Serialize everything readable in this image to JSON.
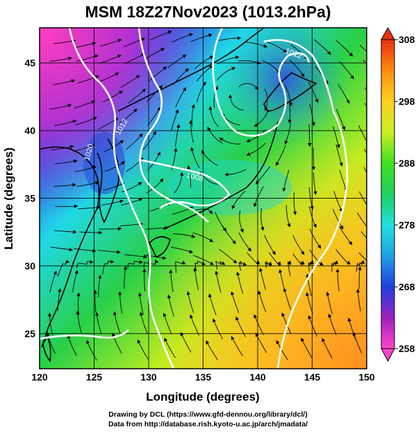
{
  "title": "MSM 18Z27Nov2023 (1013.2hPa)",
  "map": {
    "x_axis": {
      "label": "Longitude (degrees)",
      "ticks": [
        120,
        125,
        130,
        135,
        140,
        145,
        150
      ],
      "range": [
        120,
        150
      ]
    },
    "y_axis": {
      "label": "Latitude  (degrees)",
      "ticks": [
        25,
        30,
        35,
        40,
        45
      ],
      "range": [
        22.4,
        47.6
      ]
    },
    "field": "temperature",
    "overlays": [
      "white pressure contours",
      "black wind streamlines",
      "coastlines",
      "1-degree grid"
    ],
    "contour_labels": [
      "1020",
      "1012",
      "1008",
      "1012"
    ],
    "colors": {
      "high": "#e8320a",
      "low": "#ff40c0",
      "mid": "#19c832",
      "cold": "#2050d8",
      "cyan": "#20d8d8"
    }
  },
  "colorbar": {
    "ticks": [
      "308",
      "298",
      "288",
      "278",
      "268",
      "258"
    ],
    "stops": [
      "#ff44cc",
      "#a020c0",
      "#2040e0",
      "#20a0e8",
      "#20e0e0",
      "#20d060",
      "#40e020",
      "#c8f020",
      "#ffd020",
      "#ff8c10",
      "#e83010"
    ]
  },
  "credits": {
    "line1": "Drawing by DCL (https://www.gfd-dennou.org/library/dcl/)",
    "line2": "Data from http://database.rish.kyoto-u.ac.jp/arch/jmadata/"
  }
}
